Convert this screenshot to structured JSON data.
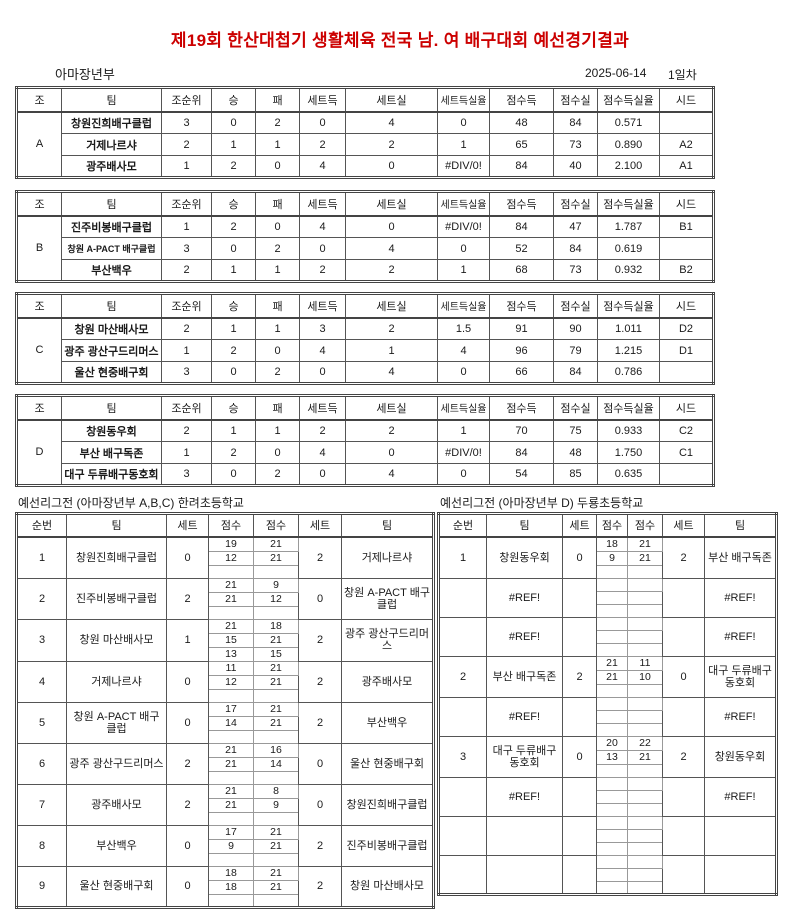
{
  "title": "제19회 한산대첩기 생활체육 전국 남. 여 배구대회  예선경기결과",
  "subtitle": {
    "division": "아마장년부",
    "date": "2025-06-14",
    "day": "1일차"
  },
  "colors": {
    "title_red": "#cc0000"
  },
  "group_headers": [
    "조",
    "팀",
    "조순위",
    "승",
    "패",
    "세트득",
    "세트실",
    "세트득실율",
    "점수득",
    "점수실",
    "점수득실율",
    "시드"
  ],
  "groups": [
    {
      "name": "A",
      "rows": [
        {
          "team": "창원진희배구클럽",
          "rank": "3",
          "win": "0",
          "loss": "2",
          "sw": "0",
          "sl": "4",
          "sr": "0",
          "pw": "48",
          "pl": "84",
          "pr": "0.571",
          "seed": ""
        },
        {
          "team": "거제나르샤",
          "rank": "2",
          "win": "1",
          "loss": "1",
          "sw": "2",
          "sl": "2",
          "sr": "1",
          "pw": "65",
          "pl": "73",
          "pr": "0.890",
          "seed": "A2"
        },
        {
          "team": "광주배사모",
          "rank": "1",
          "win": "2",
          "loss": "0",
          "sw": "4",
          "sl": "0",
          "sr": "#DIV/0!",
          "pw": "84",
          "pl": "40",
          "pr": "2.100",
          "seed": "A1"
        }
      ]
    },
    {
      "name": "B",
      "rows": [
        {
          "team": "진주비봉배구클럽",
          "rank": "1",
          "win": "2",
          "loss": "0",
          "sw": "4",
          "sl": "0",
          "sr": "#DIV/0!",
          "pw": "84",
          "pl": "47",
          "pr": "1.787",
          "seed": "B1"
        },
        {
          "team": "창원 A-PACT 배구클럽",
          "rank": "3",
          "win": "0",
          "loss": "2",
          "sw": "0",
          "sl": "4",
          "sr": "0",
          "pw": "52",
          "pl": "84",
          "pr": "0.619",
          "seed": ""
        },
        {
          "team": "부산백우",
          "rank": "2",
          "win": "1",
          "loss": "1",
          "sw": "2",
          "sl": "2",
          "sr": "1",
          "pw": "68",
          "pl": "73",
          "pr": "0.932",
          "seed": "B2"
        }
      ]
    },
    {
      "name": "C",
      "rows": [
        {
          "team": "창원 마산배사모",
          "rank": "2",
          "win": "1",
          "loss": "1",
          "sw": "3",
          "sl": "2",
          "sr": "1.5",
          "pw": "91",
          "pl": "90",
          "pr": "1.011",
          "seed": "D2"
        },
        {
          "team": "광주 광산구드리머스",
          "rank": "1",
          "win": "2",
          "loss": "0",
          "sw": "4",
          "sl": "1",
          "sr": "4",
          "pw": "96",
          "pl": "79",
          "pr": "1.215",
          "seed": "D1"
        },
        {
          "team": "울산 현중배구회",
          "rank": "3",
          "win": "0",
          "loss": "2",
          "sw": "0",
          "sl": "4",
          "sr": "0",
          "pw": "66",
          "pl": "84",
          "pr": "0.786",
          "seed": ""
        }
      ]
    },
    {
      "name": "D",
      "rows": [
        {
          "team": "창원동우회",
          "rank": "2",
          "win": "1",
          "loss": "1",
          "sw": "2",
          "sl": "2",
          "sr": "1",
          "pw": "70",
          "pl": "75",
          "pr": "0.933",
          "seed": "C2"
        },
        {
          "team": "부산 배구독존",
          "rank": "1",
          "win": "2",
          "loss": "0",
          "sw": "4",
          "sl": "0",
          "sr": "#DIV/0!",
          "pw": "84",
          "pl": "48",
          "pr": "1.750",
          "seed": "C1"
        },
        {
          "team": "대구 두류배구동호회",
          "rank": "3",
          "win": "0",
          "loss": "2",
          "sw": "0",
          "sl": "4",
          "sr": "0",
          "pw": "54",
          "pl": "85",
          "pr": "0.635",
          "seed": ""
        }
      ]
    }
  ],
  "league_headers": [
    "순번",
    "팀",
    "세트",
    "점수",
    "점수",
    "세트",
    "팀"
  ],
  "leagues": [
    {
      "title": "예선리그전 (아마장년부 A,B,C)  한려초등학교",
      "matches": [
        {
          "no": "1",
          "home": "창원진희배구클럽",
          "hs": "0",
          "scores": [
            [
              "19",
              "21"
            ],
            [
              "12",
              "21"
            ],
            [
              "",
              ""
            ]
          ],
          "as": "2",
          "away": "거제나르샤"
        },
        {
          "no": "2",
          "home": "진주비봉배구클럽",
          "hs": "2",
          "scores": [
            [
              "21",
              "9"
            ],
            [
              "21",
              "12"
            ],
            [
              "",
              ""
            ]
          ],
          "as": "0",
          "away": "창원 A-PACT 배구클럽"
        },
        {
          "no": "3",
          "home": "창원 마산배사모",
          "hs": "1",
          "scores": [
            [
              "21",
              "18"
            ],
            [
              "15",
              "21"
            ],
            [
              "13",
              "15"
            ]
          ],
          "as": "2",
          "away": "광주 광산구드리머스"
        },
        {
          "no": "4",
          "home": "거제나르샤",
          "hs": "0",
          "scores": [
            [
              "11",
              "21"
            ],
            [
              "12",
              "21"
            ],
            [
              "",
              ""
            ]
          ],
          "as": "2",
          "away": "광주배사모"
        },
        {
          "no": "5",
          "home": "창원 A-PACT 배구클럽",
          "hs": "0",
          "scores": [
            [
              "17",
              "21"
            ],
            [
              "14",
              "21"
            ],
            [
              "",
              ""
            ]
          ],
          "as": "2",
          "away": "부산백우"
        },
        {
          "no": "6",
          "home": "광주 광산구드리머스",
          "hs": "2",
          "scores": [
            [
              "21",
              "16"
            ],
            [
              "21",
              "14"
            ],
            [
              "",
              ""
            ]
          ],
          "as": "0",
          "away": "울산 현중배구회"
        },
        {
          "no": "7",
          "home": "광주배사모",
          "hs": "2",
          "scores": [
            [
              "21",
              "8"
            ],
            [
              "21",
              "9"
            ],
            [
              "",
              ""
            ]
          ],
          "as": "0",
          "away": "창원진희배구클럽"
        },
        {
          "no": "8",
          "home": "부산백우",
          "hs": "0",
          "scores": [
            [
              "17",
              "21"
            ],
            [
              "9",
              "21"
            ],
            [
              "",
              ""
            ]
          ],
          "as": "2",
          "away": "진주비봉배구클럽"
        },
        {
          "no": "9",
          "home": "울산 현중배구회",
          "hs": "0",
          "scores": [
            [
              "18",
              "21"
            ],
            [
              "18",
              "21"
            ],
            [
              "",
              ""
            ]
          ],
          "as": "2",
          "away": "창원 마산배사모"
        }
      ]
    },
    {
      "title": "예선리그전 (아마장년부 D) 두룡초등학교",
      "matches": [
        {
          "no": "1",
          "home": "창원동우회",
          "hs": "0",
          "scores": [
            [
              "18",
              "21"
            ],
            [
              "9",
              "21"
            ],
            [
              "",
              ""
            ]
          ],
          "as": "2",
          "away": "부산 배구독존"
        },
        {
          "no": "",
          "home": "#REF!",
          "hs": "",
          "scores": [
            [
              "",
              ""
            ],
            [
              "",
              ""
            ],
            [
              "",
              ""
            ]
          ],
          "as": "",
          "away": "#REF!"
        },
        {
          "no": "",
          "home": "#REF!",
          "hs": "",
          "scores": [
            [
              "",
              ""
            ],
            [
              "",
              ""
            ],
            [
              "",
              ""
            ]
          ],
          "as": "",
          "away": "#REF!"
        },
        {
          "no": "2",
          "home": "부산 배구독존",
          "hs": "2",
          "scores": [
            [
              "21",
              "11"
            ],
            [
              "21",
              "10"
            ],
            [
              "",
              ""
            ]
          ],
          "as": "0",
          "away": "대구 두류배구동호회"
        },
        {
          "no": "",
          "home": "#REF!",
          "hs": "",
          "scores": [
            [
              "",
              ""
            ],
            [
              "",
              ""
            ],
            [
              "",
              ""
            ]
          ],
          "as": "",
          "away": "#REF!"
        },
        {
          "no": "3",
          "home": "대구 두류배구동호회",
          "hs": "0",
          "scores": [
            [
              "20",
              "22"
            ],
            [
              "13",
              "21"
            ],
            [
              "",
              ""
            ]
          ],
          "as": "2",
          "away": "창원동우회"
        },
        {
          "no": "",
          "home": "#REF!",
          "hs": "",
          "scores": [
            [
              "",
              ""
            ],
            [
              "",
              ""
            ],
            [
              "",
              ""
            ]
          ],
          "as": "",
          "away": "#REF!"
        },
        {
          "no": "",
          "home": "",
          "hs": "",
          "scores": [
            [
              "",
              ""
            ],
            [
              "",
              ""
            ],
            [
              "",
              ""
            ]
          ],
          "as": "",
          "away": ""
        },
        {
          "no": "",
          "home": "",
          "hs": "",
          "scores": [
            [
              "",
              ""
            ],
            [
              "",
              ""
            ],
            [
              "",
              ""
            ]
          ],
          "as": "",
          "away": ""
        }
      ]
    }
  ]
}
